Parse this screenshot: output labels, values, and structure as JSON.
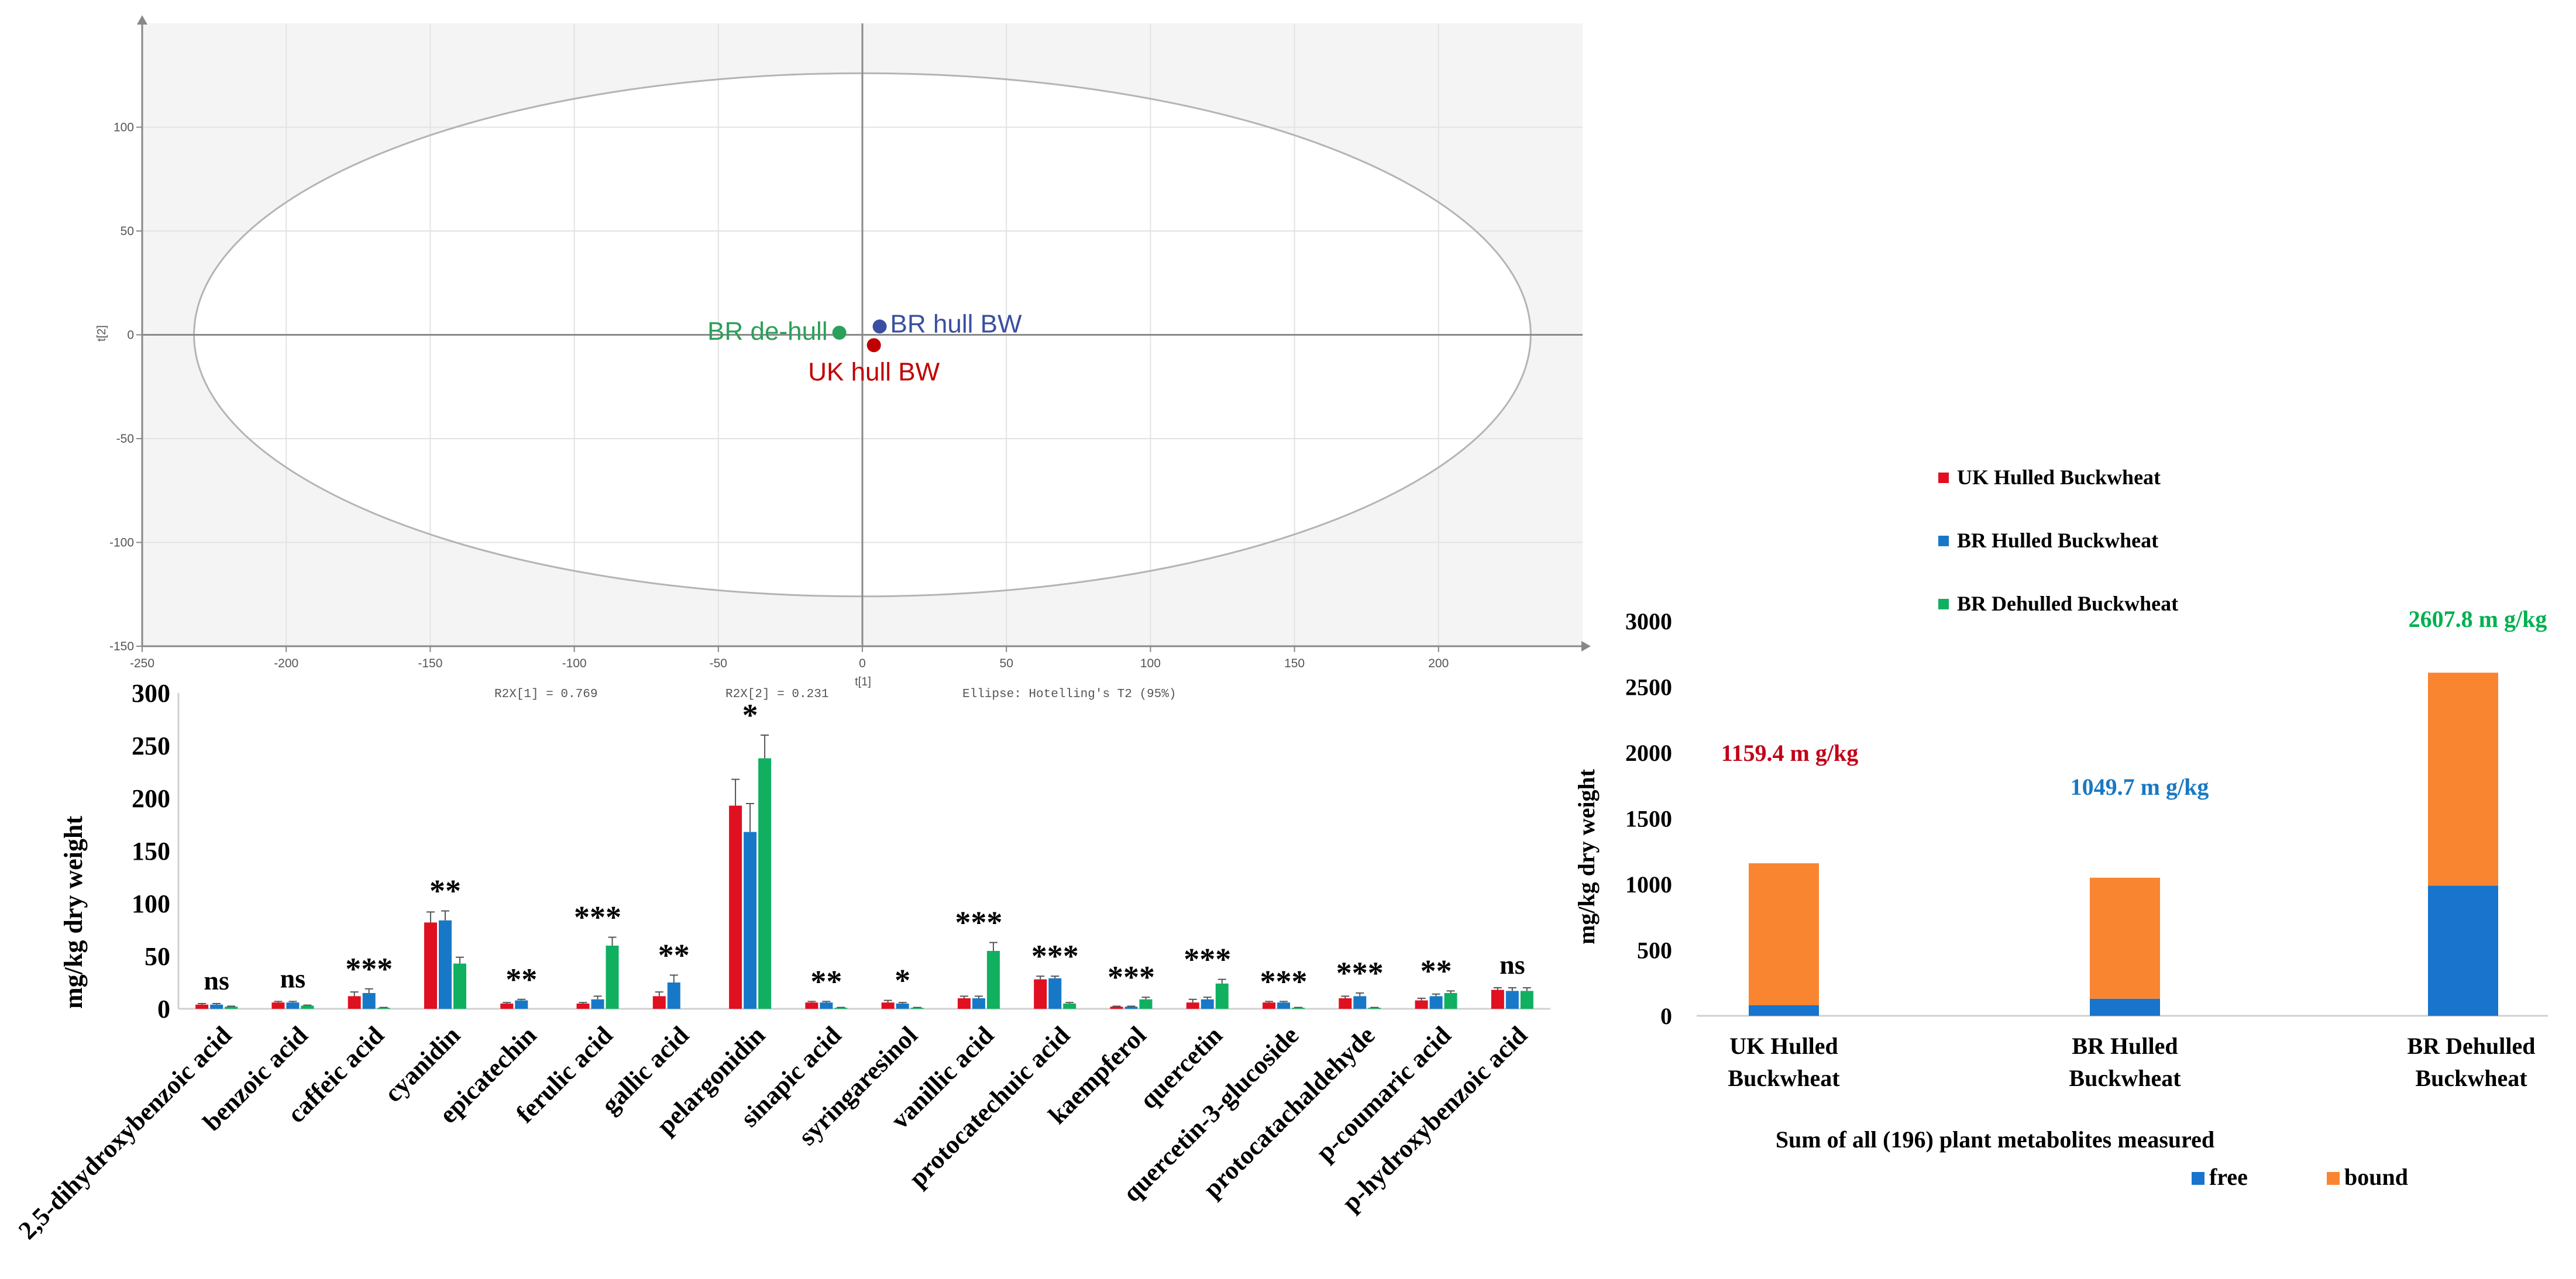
{
  "chart_data": [
    {
      "type": "scatter",
      "xlim": [
        -250,
        250
      ],
      "ylim": [
        -150,
        150
      ],
      "xticks": [
        "-250",
        "-200",
        "-150",
        "-100",
        "-50",
        "0",
        "50",
        "100",
        "150",
        "200"
      ],
      "yticks": [
        "100",
        "50",
        "0",
        "-50",
        "-100",
        "-150"
      ],
      "xlabel": "t[1]",
      "ylabel": "t[2]",
      "footer": {
        "r2x1": "R2X[1] = 0.769",
        "r2x2": "R2X[2] = 0.231",
        "ellipse": "Ellipse: Hotelling's T2 (95%)"
      },
      "ellipse_radii": [
        232,
        126
      ],
      "points": [
        {
          "label": "BR de-hull",
          "x": -8,
          "y": 1,
          "color": "#2ca05a"
        },
        {
          "label": "BR hull BW",
          "x": 6,
          "y": 4,
          "color": "#3a4fa0"
        },
        {
          "label": "UK hull BW",
          "x": 4,
          "y": -5,
          "color": "#c00000"
        }
      ]
    },
    {
      "type": "bar",
      "ylabel": "mg/kg dry weight",
      "ylim": [
        0,
        300
      ],
      "yticks": [
        "0",
        "50",
        "100",
        "150",
        "200",
        "250",
        "300"
      ],
      "categories": [
        "2,5-dihydroxybenzoic acid",
        "benzoic acid",
        "caffeic acid",
        "cyanidin",
        "epicatechin",
        "ferulic acid",
        "gallic acid",
        "pelargonidin",
        "sinapic acid",
        "syringaresinol",
        "vanillic acid",
        "protocatechuic acid",
        "kaempferol",
        "quercetin",
        "quercetin-3-glucoside",
        "protocatachaldehyde",
        "p-coumaric acid",
        "p-hydroxybenzoic acid"
      ],
      "significance": [
        "ns",
        "ns",
        "***",
        "**",
        "**",
        "***",
        "**",
        "*",
        "**",
        "*",
        "***",
        "***",
        "***",
        "***",
        "***",
        "***",
        "**",
        "ns"
      ],
      "series": [
        {
          "name": "UK Hulled Buckwheat",
          "color": "#e01020",
          "values": [
            4,
            6,
            12,
            82,
            5,
            5,
            12,
            193,
            6,
            6,
            10,
            28,
            2,
            6,
            6,
            10,
            8,
            18
          ],
          "errors": [
            1,
            1,
            4,
            10,
            1,
            1,
            4,
            25,
            1,
            2,
            2,
            3,
            0.5,
            3,
            1,
            2,
            2,
            2
          ]
        },
        {
          "name": "BR Hulled Buckwheat",
          "color": "#1878c8",
          "values": [
            4,
            6,
            15,
            84,
            8,
            9,
            25,
            168,
            6,
            5,
            10,
            29,
            2,
            9,
            6,
            12,
            12,
            17
          ],
          "errors": [
            1,
            1,
            4,
            9,
            1,
            3,
            7,
            27,
            1,
            1,
            2,
            2,
            0.5,
            2,
            1,
            3,
            2,
            3
          ]
        },
        {
          "name": "BR Dehulled Buckwheat",
          "color": "#10b060",
          "values": [
            2,
            3,
            1,
            43,
            0,
            60,
            0,
            238,
            1,
            1,
            55,
            5,
            9,
            24,
            1,
            1,
            15,
            17
          ],
          "errors": [
            0.5,
            0.5,
            0.3,
            6,
            0,
            8,
            0,
            22,
            0.3,
            0.3,
            8,
            1,
            2,
            4,
            0.3,
            0.3,
            2,
            3
          ]
        }
      ]
    },
    {
      "type": "bar",
      "stacked": true,
      "ylabel": "mg/kg dry weight",
      "xlabel": "Sum of all (196) plant metabolites measured",
      "ylim": [
        0,
        3000
      ],
      "yticks": [
        "0",
        "500",
        "1000",
        "1500",
        "2000",
        "2500",
        "3000"
      ],
      "categories": [
        [
          "UK Hulled",
          "Buckwheat"
        ],
        [
          "BR Hulled",
          "Buckwheat"
        ],
        [
          "BR Dehulled",
          "Buckwheat"
        ]
      ],
      "series": [
        {
          "name": "free",
          "color": "#1874cd",
          "values": [
            80,
            130,
            990
          ]
        },
        {
          "name": "bound",
          "color": "#f98531",
          "values": [
            1079.4,
            919.7,
            1617.8
          ]
        }
      ],
      "totals": [
        "1159.4 m g/kg",
        "1049.7 m g/kg",
        "2607.8 m g/kg"
      ],
      "total_colors": [
        "#c00018",
        "#1a78c2",
        "#00b050"
      ],
      "legend_position": "bottom-right",
      "series_legend_labels": [
        "UK  Hulled Buckwheat",
        "BR Hulled Buckwheat",
        "BR Dehulled Buckwheat"
      ]
    }
  ]
}
